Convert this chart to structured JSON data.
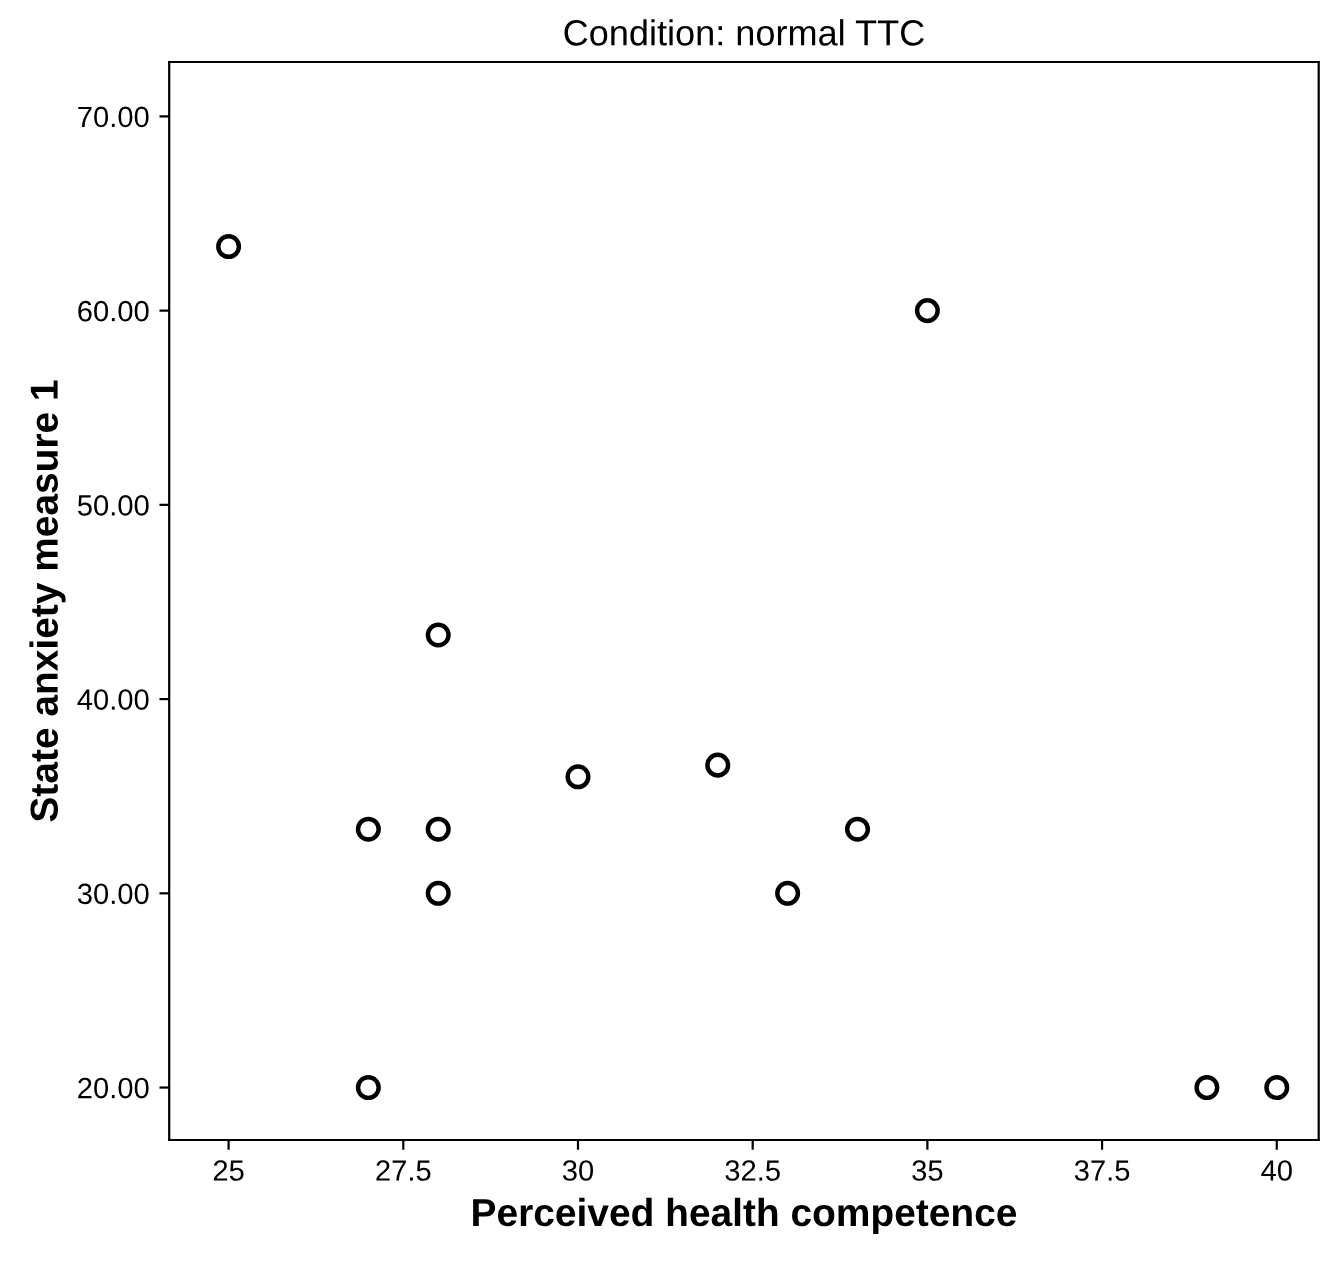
{
  "chart_data": {
    "type": "scatter",
    "title": "Condition: normal TTC",
    "xlabel": "Perceived health competence",
    "ylabel": "State anxiety measure 1",
    "x": [
      25,
      35,
      28,
      27,
      28,
      28,
      30,
      32,
      33,
      34,
      27,
      39,
      40
    ],
    "series": [
      {
        "color": "#000000",
        "values": [
          63.3,
          60,
          43.3,
          33.3,
          33.3,
          30,
          36,
          36.6,
          30,
          33.3,
          20,
          20,
          20
        ]
      }
    ],
    "marker": "circle",
    "grid": false,
    "legend": false,
    "xlim": [
      24.15,
      40.6
    ],
    "ylim": [
      17.3,
      72.8
    ],
    "xticks": [
      25,
      27.5,
      30,
      32.5,
      35,
      37.5,
      40
    ],
    "yticks": [
      {
        "value": 20,
        "label": "20.00"
      },
      {
        "value": 30,
        "label": "30.00"
      },
      {
        "value": 40,
        "label": "40.00"
      },
      {
        "value": 50,
        "label": "50.00"
      },
      {
        "value": 60,
        "label": "60.00"
      },
      {
        "value": 70,
        "label": "70.00"
      }
    ]
  }
}
